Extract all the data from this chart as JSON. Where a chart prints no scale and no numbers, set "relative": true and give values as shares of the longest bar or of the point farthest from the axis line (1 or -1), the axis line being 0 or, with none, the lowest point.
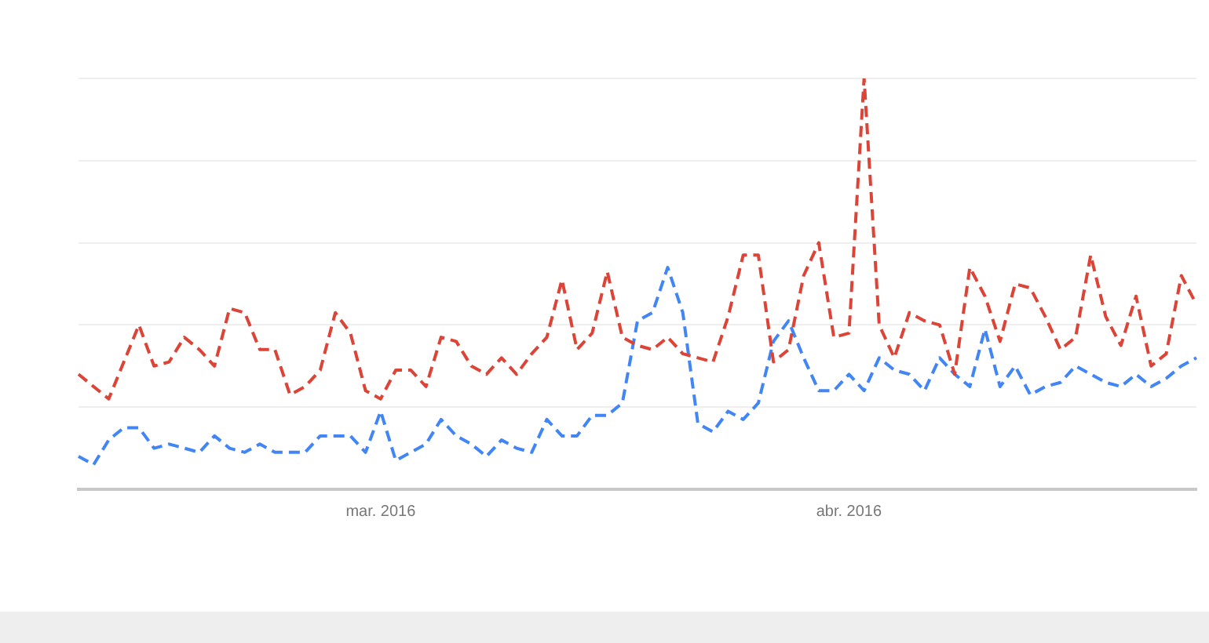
{
  "chart_data": {
    "type": "line",
    "relative": true,
    "line_style": "dashed",
    "marker": "none",
    "grid": "y",
    "legend": false,
    "categories": [
      null,
      null,
      null,
      null,
      null,
      null,
      null,
      null,
      null,
      null,
      null,
      null,
      null,
      null,
      null,
      null,
      null,
      null,
      null,
      null,
      "mar. 2016",
      null,
      null,
      null,
      null,
      null,
      null,
      null,
      null,
      null,
      null,
      null,
      null,
      null,
      null,
      null,
      null,
      null,
      null,
      null,
      null,
      null,
      null,
      null,
      null,
      null,
      null,
      null,
      null,
      null,
      null,
      "abr. 2016",
      null,
      null,
      null,
      null,
      null,
      null,
      null,
      null,
      null,
      null,
      null,
      null,
      null,
      null,
      null,
      null,
      null,
      null,
      null,
      null,
      null,
      null,
      null
    ],
    "series": [
      {
        "color": "#db4437",
        "values": [
          0.28,
          0.25,
          0.22,
          0.31,
          0.4,
          0.3,
          0.31,
          0.37,
          0.34,
          0.3,
          0.44,
          0.43,
          0.34,
          0.34,
          0.23,
          0.25,
          0.29,
          0.43,
          0.38,
          0.24,
          0.22,
          0.29,
          0.29,
          0.25,
          0.37,
          0.36,
          0.3,
          0.28,
          0.32,
          0.28,
          0.33,
          0.37,
          0.51,
          0.34,
          0.38,
          0.53,
          0.37,
          0.35,
          0.34,
          0.37,
          0.33,
          0.32,
          0.31,
          0.42,
          0.57,
          0.57,
          0.31,
          0.34,
          0.52,
          0.6,
          0.37,
          0.38,
          1,
          0.4,
          0.32,
          0.43,
          0.41,
          0.4,
          0.28,
          0.54,
          0.47,
          0.36,
          0.5,
          0.49,
          0.42,
          0.34,
          0.37,
          0.57,
          0.42,
          0.35,
          0.47,
          0.3,
          0.33,
          0.52,
          0.45
        ]
      },
      {
        "color": "#4285f4",
        "values": [
          0.08,
          0.06,
          0.12,
          0.15,
          0.15,
          0.1,
          0.11,
          0.1,
          0.09,
          0.13,
          0.1,
          0.09,
          0.11,
          0.09,
          0.09,
          0.09,
          0.13,
          0.13,
          0.13,
          0.09,
          0.19,
          0.07,
          0.09,
          0.11,
          0.17,
          0.13,
          0.11,
          0.08,
          0.12,
          0.1,
          0.09,
          0.17,
          0.13,
          0.13,
          0.18,
          0.18,
          0.21,
          0.41,
          0.43,
          0.54,
          0.43,
          0.16,
          0.14,
          0.19,
          0.17,
          0.21,
          0.36,
          0.41,
          0.32,
          0.24,
          0.24,
          0.28,
          0.24,
          0.32,
          0.29,
          0.28,
          0.24,
          0.32,
          0.28,
          0.25,
          0.39,
          0.25,
          0.3,
          0.23,
          0.25,
          0.26,
          0.3,
          0.28,
          0.26,
          0.25,
          0.28,
          0.25,
          0.27,
          0.3,
          0.32
        ]
      }
    ]
  }
}
